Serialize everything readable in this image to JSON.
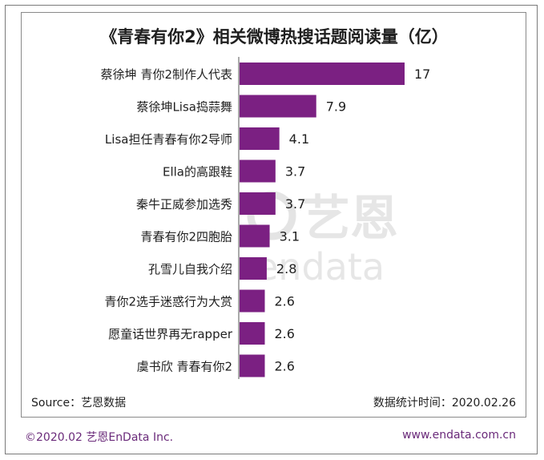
{
  "chart_data": {
    "type": "bar",
    "orientation": "horizontal",
    "title": "《青春有你2》相关微博热搜话题阅读量（亿）",
    "categories": [
      "蔡徐坤 青你2制作人代表",
      "蔡徐坤Lisa捣蒜舞",
      "Lisa担任青春有你2导师",
      "Ella的高跟鞋",
      "秦牛正威参加选秀",
      "青春有你2四胞胎",
      "孔雪儿自我介绍",
      "青你2选手迷惑行为大赏",
      "愿童话世界再无rapper",
      "虞书欣 青春有你2"
    ],
    "values": [
      17,
      7.9,
      4.1,
      3.7,
      3.7,
      3.1,
      2.8,
      2.6,
      2.6,
      2.6
    ],
    "bar_color": "#7b2082",
    "xlim": [
      0,
      17
    ],
    "grid": false,
    "legend": "none"
  },
  "footer": {
    "source": "Source：艺恩数据",
    "date": "数据统计时间：2020.02.26"
  },
  "brand": {
    "copyright": "©2020.02 艺恩EnData Inc.",
    "website": "www.endata.com.cn",
    "watermark_cn": "艺恩",
    "watermark_en": "endata"
  }
}
